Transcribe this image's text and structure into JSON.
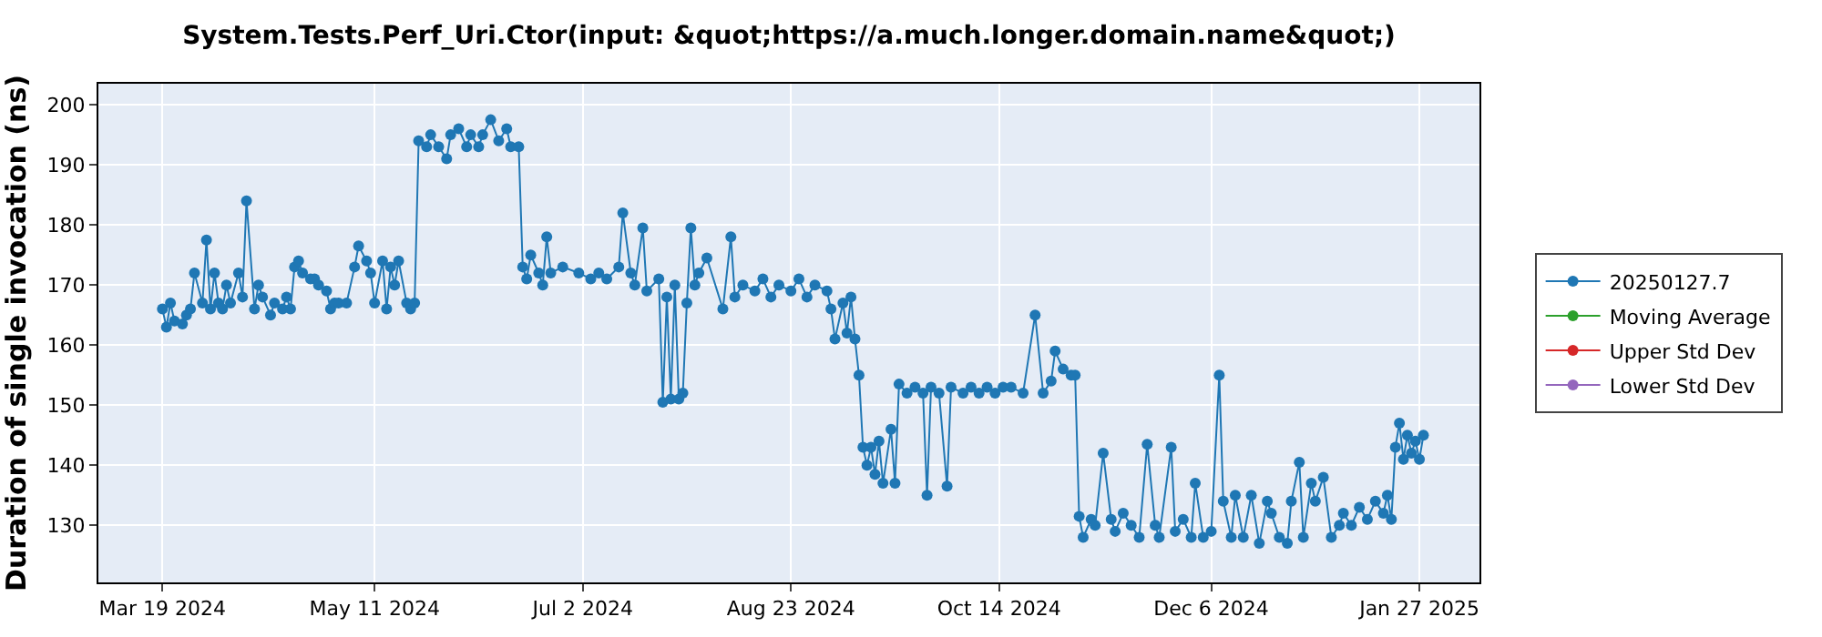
{
  "chart_data": {
    "type": "line",
    "title": "System.Tests.Perf_Uri.Ctor(input: &quot;https://a.much.longer.domain.name&quot;)",
    "ylabel": "Duration of single invocation (ns)",
    "x": [
      "2024-03-19",
      "2024-03-20",
      "2024-03-21",
      "2024-03-22",
      "2024-03-24",
      "2024-03-25",
      "2024-03-26",
      "2024-03-27",
      "2024-03-29",
      "2024-03-30",
      "2024-03-31",
      "2024-04-01",
      "2024-04-02",
      "2024-04-03",
      "2024-04-04",
      "2024-04-05",
      "2024-04-07",
      "2024-04-08",
      "2024-04-09",
      "2024-04-11",
      "2024-04-12",
      "2024-04-13",
      "2024-04-15",
      "2024-04-16",
      "2024-04-18",
      "2024-04-19",
      "2024-04-20",
      "2024-04-21",
      "2024-04-22",
      "2024-04-23",
      "2024-04-25",
      "2024-04-26",
      "2024-04-27",
      "2024-04-29",
      "2024-04-30",
      "2024-05-01",
      "2024-05-02",
      "2024-05-04",
      "2024-05-06",
      "2024-05-07",
      "2024-05-09",
      "2024-05-10",
      "2024-05-11",
      "2024-05-13",
      "2024-05-14",
      "2024-05-15",
      "2024-05-16",
      "2024-05-17",
      "2024-05-19",
      "2024-05-20",
      "2024-05-21",
      "2024-05-22",
      "2024-05-24",
      "2024-05-25",
      "2024-05-27",
      "2024-05-29",
      "2024-05-30",
      "2024-06-01",
      "2024-06-03",
      "2024-06-04",
      "2024-06-06",
      "2024-06-07",
      "2024-06-09",
      "2024-06-11",
      "2024-06-13",
      "2024-06-14",
      "2024-06-16",
      "2024-06-17",
      "2024-06-18",
      "2024-06-19",
      "2024-06-21",
      "2024-06-22",
      "2024-06-23",
      "2024-06-24",
      "2024-06-27",
      "2024-07-01",
      "2024-07-04",
      "2024-07-06",
      "2024-07-08",
      "2024-07-11",
      "2024-07-12",
      "2024-07-14",
      "2024-07-15",
      "2024-07-17",
      "2024-07-18",
      "2024-07-21",
      "2024-07-22",
      "2024-07-23",
      "2024-07-24",
      "2024-07-25",
      "2024-07-26",
      "2024-07-27",
      "2024-07-28",
      "2024-07-29",
      "2024-07-30",
      "2024-07-31",
      "2024-08-02",
      "2024-08-06",
      "2024-08-08",
      "2024-08-09",
      "2024-08-11",
      "2024-08-14",
      "2024-08-16",
      "2024-08-18",
      "2024-08-20",
      "2024-08-23",
      "2024-08-25",
      "2024-08-27",
      "2024-08-29",
      "2024-09-01",
      "2024-09-02",
      "2024-09-03",
      "2024-09-05",
      "2024-09-06",
      "2024-09-07",
      "2024-09-08",
      "2024-09-09",
      "2024-09-10",
      "2024-09-11",
      "2024-09-12",
      "2024-09-13",
      "2024-09-14",
      "2024-09-15",
      "2024-09-17",
      "2024-09-18",
      "2024-09-19",
      "2024-09-21",
      "2024-09-23",
      "2024-09-25",
      "2024-09-26",
      "2024-09-27",
      "2024-09-29",
      "2024-10-01",
      "2024-10-02",
      "2024-10-05",
      "2024-10-07",
      "2024-10-09",
      "2024-10-11",
      "2024-10-13",
      "2024-10-15",
      "2024-10-17",
      "2024-10-20",
      "2024-10-23",
      "2024-10-25",
      "2024-10-27",
      "2024-10-28",
      "2024-10-30",
      "2024-11-01",
      "2024-11-02",
      "2024-11-03",
      "2024-11-04",
      "2024-11-06",
      "2024-11-07",
      "2024-11-09",
      "2024-11-11",
      "2024-11-12",
      "2024-11-14",
      "2024-11-16",
      "2024-11-18",
      "2024-11-20",
      "2024-11-22",
      "2024-11-23",
      "2024-11-26",
      "2024-11-27",
      "2024-11-29",
      "2024-12-01",
      "2024-12-02",
      "2024-12-04",
      "2024-12-06",
      "2024-12-08",
      "2024-12-09",
      "2024-12-11",
      "2024-12-12",
      "2024-12-14",
      "2024-12-16",
      "2024-12-18",
      "2024-12-20",
      "2024-12-21",
      "2024-12-23",
      "2024-12-25",
      "2024-12-26",
      "2024-12-28",
      "2024-12-29",
      "2024-12-31",
      "2025-01-01",
      "2025-01-03",
      "2025-01-05",
      "2025-01-07",
      "2025-01-08",
      "2025-01-10",
      "2025-01-12",
      "2025-01-14",
      "2025-01-16",
      "2025-01-18",
      "2025-01-19",
      "2025-01-20",
      "2025-01-21",
      "2025-01-22",
      "2025-01-23",
      "2025-01-24",
      "2025-01-25",
      "2025-01-26",
      "2025-01-27",
      "2025-01-28"
    ],
    "series": [
      {
        "name": "20250127.7",
        "color": "#1f77b4",
        "values": [
          166,
          163,
          167,
          164,
          163.5,
          165,
          166,
          172,
          167,
          177.5,
          166,
          172,
          167,
          166,
          170,
          167,
          172,
          168,
          184,
          166,
          170,
          168,
          165,
          167,
          166,
          168,
          166,
          173,
          174,
          172,
          171,
          171,
          170,
          169,
          166,
          167,
          167,
          167,
          173,
          176.5,
          174,
          172,
          167,
          174,
          166,
          173,
          170,
          174,
          167,
          166,
          167,
          194,
          193,
          195,
          193,
          191,
          195,
          196,
          193,
          195,
          193,
          195,
          197.5,
          194,
          196,
          193,
          193,
          173,
          171,
          175,
          172,
          170,
          178,
          172,
          173,
          172,
          171,
          172,
          171,
          173,
          182,
          172,
          170,
          179.5,
          169,
          171,
          150.5,
          168,
          151,
          170,
          151,
          152,
          167,
          179.5,
          170,
          172,
          174.5,
          166,
          178,
          168,
          170,
          169,
          171,
          168,
          170,
          169,
          171,
          168,
          170,
          169,
          166,
          161,
          167,
          162,
          168,
          161,
          155,
          143,
          140,
          143,
          138.5,
          144,
          137,
          146,
          137,
          153.5,
          152,
          153,
          152,
          135,
          153,
          152,
          136.5,
          153,
          152,
          153,
          152,
          153,
          152,
          153,
          153,
          152,
          165,
          152,
          154,
          159,
          156,
          155,
          155,
          131.5,
          128,
          131,
          130,
          142,
          131,
          129,
          132,
          130,
          128,
          143.5,
          130,
          128,
          143,
          129,
          131,
          128,
          137,
          128,
          129,
          155,
          134,
          128,
          135,
          128,
          135,
          127,
          134,
          132,
          128,
          127,
          134,
          140.5,
          128,
          137,
          134,
          138,
          128,
          130,
          132,
          130,
          133,
          131,
          134,
          132,
          135,
          131,
          143,
          147,
          141,
          145,
          142,
          144,
          141,
          145
        ]
      },
      {
        "name": "Moving Average",
        "color": "#2ca02c",
        "values": [
          null,
          null,
          null,
          null,
          null,
          null,
          null,
          null,
          null,
          null,
          null,
          null,
          null,
          null,
          null,
          null,
          null,
          null,
          null,
          null,
          null,
          null,
          null,
          null,
          null,
          null,
          null,
          null,
          null,
          null,
          null,
          null,
          null,
          null,
          null,
          null,
          null,
          null,
          null,
          null,
          null,
          null,
          null,
          null,
          null,
          null,
          null,
          null,
          null,
          null,
          null,
          null,
          null,
          null,
          null,
          null,
          null,
          null,
          null,
          null,
          null,
          null,
          null,
          null,
          null,
          null,
          null,
          null,
          null,
          null,
          null,
          null,
          null,
          null,
          null,
          null,
          null,
          null,
          null,
          null,
          null,
          null,
          null,
          null,
          null,
          null,
          null,
          null,
          null,
          null,
          null,
          null,
          null,
          null,
          null,
          null,
          null,
          null,
          null,
          null,
          null,
          null,
          null,
          null,
          null,
          null,
          null,
          null,
          null,
          null,
          null,
          null,
          null,
          null,
          null,
          null,
          null,
          null,
          null,
          null,
          null,
          null,
          null,
          null,
          null,
          null,
          null,
          null,
          null,
          null,
          null,
          null,
          null,
          null,
          null,
          null,
          null,
          null,
          null,
          null,
          null,
          null,
          null,
          null,
          null,
          null,
          null,
          null,
          null,
          null,
          null,
          null,
          null,
          null,
          null,
          null,
          null,
          null,
          null,
          null,
          null,
          null,
          null,
          null,
          null,
          null,
          null,
          null,
          null,
          null,
          null,
          null,
          null,
          null,
          null,
          null,
          null,
          null,
          null,
          null,
          null,
          null,
          null,
          null,
          null,
          null,
          null,
          null,
          null,
          null,
          null,
          null,
          null,
          null,
          null,
          null,
          null,
          null,
          null,
          null,
          null,
          null,
          null,
          null
        ]
      },
      {
        "name": "Upper Std Dev",
        "color": "#d62728",
        "values": [
          null,
          null,
          null,
          null,
          null,
          null,
          null,
          null,
          null,
          null,
          null,
          null,
          null,
          null,
          null,
          null,
          null,
          null,
          null,
          null,
          null,
          null,
          null,
          null,
          null,
          null,
          null,
          null,
          null,
          null,
          null,
          null,
          null,
          null,
          null,
          null,
          null,
          null,
          null,
          null,
          null,
          null,
          null,
          null,
          null,
          null,
          null,
          null,
          null,
          null,
          null,
          null,
          null,
          null,
          null,
          null,
          null,
          null,
          null,
          null,
          null,
          null,
          null,
          null,
          null,
          null,
          null,
          null,
          null,
          null,
          null,
          null,
          null,
          null,
          null,
          null,
          null,
          null,
          null,
          null,
          null,
          null,
          null,
          null,
          null,
          null,
          null,
          null,
          null,
          null,
          null,
          null,
          null,
          null,
          null,
          null,
          null,
          null,
          null,
          null,
          null,
          null,
          null,
          null,
          null,
          null,
          null,
          null,
          null,
          null,
          null,
          null,
          null,
          null,
          null,
          null,
          null,
          null,
          null,
          null,
          null,
          null,
          null,
          null,
          null,
          null,
          null,
          null,
          null,
          null,
          null,
          null,
          null,
          null,
          null,
          null,
          null,
          null,
          null,
          null,
          null,
          null,
          null,
          null,
          null,
          null,
          null,
          null,
          null,
          null,
          null,
          null,
          null,
          null,
          null,
          null,
          null,
          null,
          null,
          null,
          null,
          null,
          null,
          null,
          null,
          null,
          null,
          null,
          null,
          null,
          null,
          null,
          null,
          null,
          null,
          null,
          null,
          null,
          null,
          null,
          null,
          null,
          null,
          null,
          null,
          null,
          null,
          null,
          null,
          null,
          null,
          null,
          null,
          null,
          null,
          null,
          null,
          null,
          null,
          null,
          null,
          null,
          null,
          null
        ]
      },
      {
        "name": "Lower Std Dev",
        "color": "#9467bd",
        "values": [
          null,
          null,
          null,
          null,
          null,
          null,
          null,
          null,
          null,
          null,
          null,
          null,
          null,
          null,
          null,
          null,
          null,
          null,
          null,
          null,
          null,
          null,
          null,
          null,
          null,
          null,
          null,
          null,
          null,
          null,
          null,
          null,
          null,
          null,
          null,
          null,
          null,
          null,
          null,
          null,
          null,
          null,
          null,
          null,
          null,
          null,
          null,
          null,
          null,
          null,
          null,
          null,
          null,
          null,
          null,
          null,
          null,
          null,
          null,
          null,
          null,
          null,
          null,
          null,
          null,
          null,
          null,
          null,
          null,
          null,
          null,
          null,
          null,
          null,
          null,
          null,
          null,
          null,
          null,
          null,
          null,
          null,
          null,
          null,
          null,
          null,
          null,
          null,
          null,
          null,
          null,
          null,
          null,
          null,
          null,
          null,
          null,
          null,
          null,
          null,
          null,
          null,
          null,
          null,
          null,
          null,
          null,
          null,
          null,
          null,
          null,
          null,
          null,
          null,
          null,
          null,
          null,
          null,
          null,
          null,
          null,
          null,
          null,
          null,
          null,
          null,
          null,
          null,
          null,
          null,
          null,
          null,
          null,
          null,
          null,
          null,
          null,
          null,
          null,
          null,
          null,
          null,
          null,
          null,
          null,
          null,
          null,
          null,
          null,
          null,
          null,
          null,
          null,
          null,
          null,
          null,
          null,
          null,
          null,
          null,
          null,
          null,
          null,
          null,
          null,
          null,
          null,
          null,
          null,
          null,
          null,
          null,
          null,
          null,
          null,
          null,
          null,
          null,
          null,
          null,
          null,
          null,
          null,
          null,
          null,
          null,
          null,
          null,
          null,
          null,
          null,
          null,
          null,
          null,
          null,
          null,
          null,
          null,
          null,
          null,
          null,
          null,
          null,
          null
        ]
      }
    ],
    "xlim": [
      "2024-03-03",
      "2025-02-11"
    ],
    "xticks": [
      {
        "value": "2024-03-19",
        "label": "Mar 19 2024"
      },
      {
        "value": "2024-05-11",
        "label": "May 11 2024"
      },
      {
        "value": "2024-07-02",
        "label": "Jul 2 2024"
      },
      {
        "value": "2024-08-23",
        "label": "Aug 23 2024"
      },
      {
        "value": "2024-10-14",
        "label": "Oct 14 2024"
      },
      {
        "value": "2024-12-06",
        "label": "Dec 6 2024"
      },
      {
        "value": "2025-01-27",
        "label": "Jan 27 2025"
      }
    ],
    "ylim": [
      120.5,
      203.5
    ],
    "yticks": [
      130,
      140,
      150,
      160,
      170,
      180,
      190,
      200
    ],
    "grid": true,
    "legend": "right",
    "marker": "circle",
    "line_style": "solid"
  }
}
